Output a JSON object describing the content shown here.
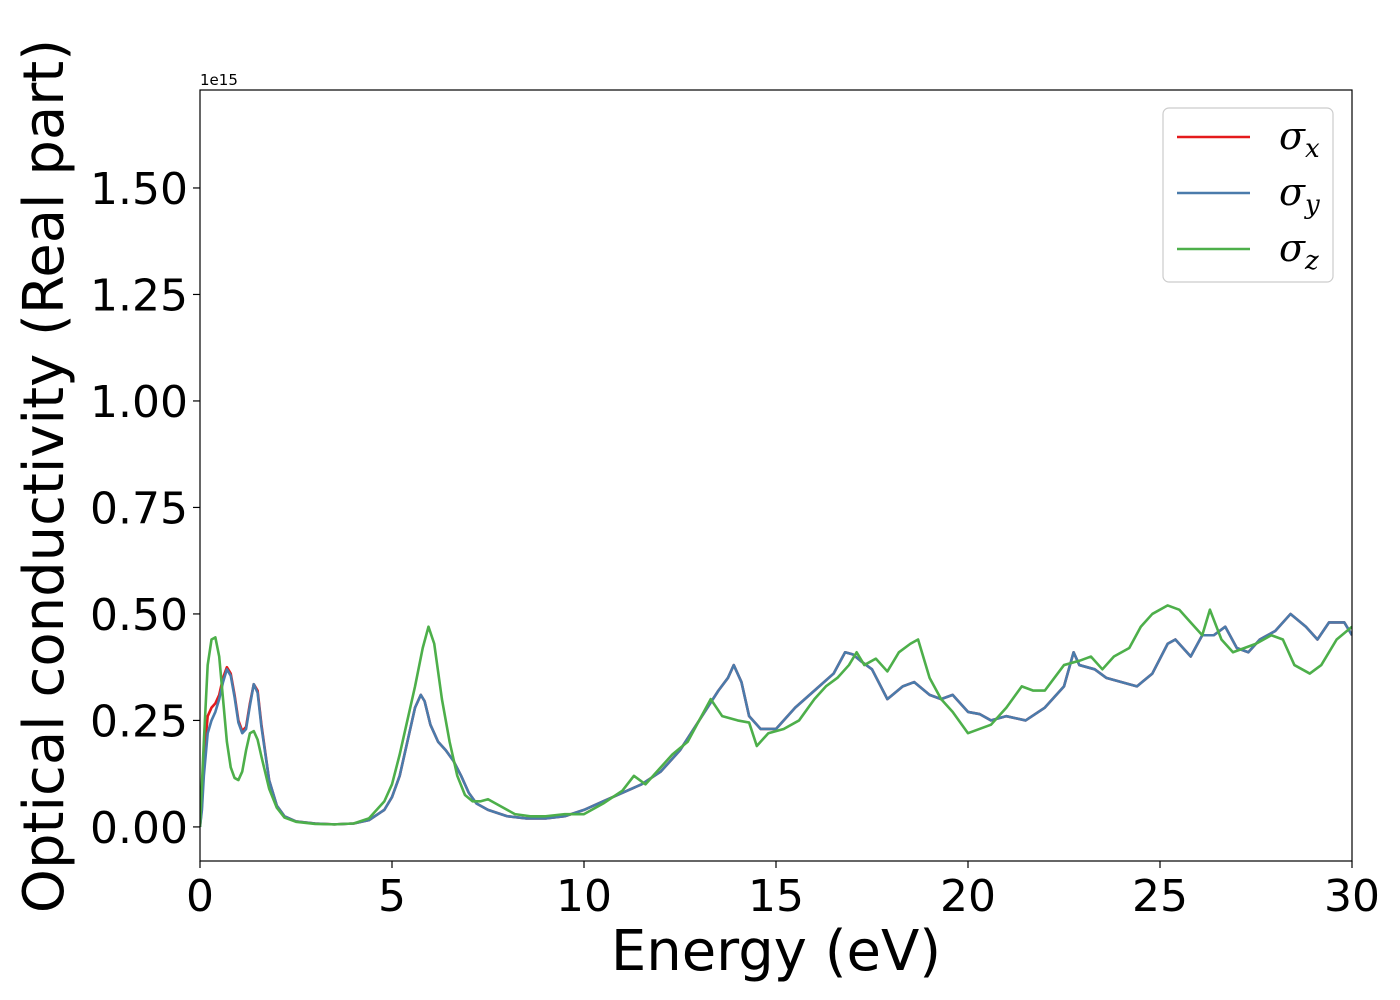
{
  "chart_data": {
    "type": "line",
    "xlabel": "Energy (eV)",
    "ylabel": "Optical conductivity (Real part)",
    "y_offset_text": "1e15",
    "xlim": [
      0,
      30
    ],
    "ylim": [
      -0.08,
      1.73
    ],
    "xticks": [
      0,
      5,
      10,
      15,
      20,
      25,
      30
    ],
    "xtick_labels": [
      "0",
      "5",
      "10",
      "15",
      "20",
      "25",
      "30"
    ],
    "yticks": [
      0.0,
      0.25,
      0.5,
      0.75,
      1.0,
      1.25,
      1.5
    ],
    "ytick_labels": [
      "0.00",
      "0.25",
      "0.50",
      "0.75",
      "1.00",
      "1.25",
      "1.50"
    ],
    "grid": false,
    "legend_position": "top-right",
    "series": [
      {
        "name": "σx",
        "legend_main": "σ",
        "legend_sub": "x",
        "color": "#e41a1c",
        "points": [
          [
            0,
            0.0
          ],
          [
            0.05,
            0.05
          ],
          [
            0.1,
            0.16
          ],
          [
            0.2,
            0.26
          ],
          [
            0.3,
            0.28
          ],
          [
            0.4,
            0.29
          ],
          [
            0.5,
            0.31
          ],
          [
            0.6,
            0.35
          ],
          [
            0.7,
            0.375
          ],
          [
            0.8,
            0.36
          ],
          [
            0.9,
            0.31
          ],
          [
            1.0,
            0.25
          ],
          [
            1.1,
            0.225
          ],
          [
            1.2,
            0.235
          ],
          [
            1.3,
            0.29
          ],
          [
            1.4,
            0.335
          ],
          [
            1.5,
            0.32
          ],
          [
            1.6,
            0.24
          ],
          [
            1.8,
            0.11
          ],
          [
            2.0,
            0.05
          ],
          [
            2.2,
            0.025
          ],
          [
            2.5,
            0.013
          ],
          [
            3.0,
            0.008
          ],
          [
            3.5,
            0.006
          ],
          [
            4.0,
            0.008
          ],
          [
            4.4,
            0.016
          ],
          [
            4.8,
            0.04
          ],
          [
            5.0,
            0.07
          ],
          [
            5.2,
            0.12
          ],
          [
            5.4,
            0.2
          ],
          [
            5.6,
            0.28
          ],
          [
            5.75,
            0.31
          ],
          [
            5.85,
            0.295
          ],
          [
            6.0,
            0.24
          ],
          [
            6.2,
            0.2
          ],
          [
            6.4,
            0.18
          ],
          [
            6.6,
            0.155
          ],
          [
            6.8,
            0.12
          ],
          [
            7.0,
            0.08
          ],
          [
            7.2,
            0.055
          ],
          [
            7.5,
            0.04
          ],
          [
            8.0,
            0.025
          ],
          [
            8.5,
            0.02
          ],
          [
            9.0,
            0.02
          ],
          [
            9.5,
            0.025
          ],
          [
            10.0,
            0.04
          ],
          [
            10.5,
            0.06
          ],
          [
            11.0,
            0.08
          ],
          [
            11.5,
            0.1
          ],
          [
            12.0,
            0.13
          ],
          [
            12.5,
            0.18
          ],
          [
            13.0,
            0.25
          ],
          [
            13.5,
            0.32
          ],
          [
            13.75,
            0.35
          ],
          [
            13.9,
            0.38
          ],
          [
            14.1,
            0.34
          ],
          [
            14.3,
            0.26
          ],
          [
            14.6,
            0.23
          ],
          [
            15.0,
            0.23
          ],
          [
            15.5,
            0.28
          ],
          [
            16.0,
            0.32
          ],
          [
            16.5,
            0.36
          ],
          [
            16.8,
            0.41
          ],
          [
            17.0,
            0.405
          ],
          [
            17.2,
            0.39
          ],
          [
            17.5,
            0.37
          ],
          [
            17.9,
            0.3
          ],
          [
            18.3,
            0.33
          ],
          [
            18.6,
            0.34
          ],
          [
            19.0,
            0.31
          ],
          [
            19.3,
            0.3
          ],
          [
            19.6,
            0.31
          ],
          [
            20.0,
            0.27
          ],
          [
            20.3,
            0.265
          ],
          [
            20.6,
            0.25
          ],
          [
            21.0,
            0.26
          ],
          [
            21.5,
            0.25
          ],
          [
            22.0,
            0.28
          ],
          [
            22.5,
            0.33
          ],
          [
            22.75,
            0.41
          ],
          [
            22.9,
            0.38
          ],
          [
            23.3,
            0.37
          ],
          [
            23.6,
            0.35
          ],
          [
            24.0,
            0.34
          ],
          [
            24.4,
            0.33
          ],
          [
            24.8,
            0.36
          ],
          [
            25.2,
            0.43
          ],
          [
            25.4,
            0.44
          ],
          [
            25.8,
            0.4
          ],
          [
            26.1,
            0.45
          ],
          [
            26.4,
            0.45
          ],
          [
            26.7,
            0.47
          ],
          [
            27.0,
            0.42
          ],
          [
            27.3,
            0.41
          ],
          [
            27.6,
            0.44
          ],
          [
            28.0,
            0.46
          ],
          [
            28.4,
            0.5
          ],
          [
            28.8,
            0.47
          ],
          [
            29.1,
            0.44
          ],
          [
            29.4,
            0.48
          ],
          [
            29.8,
            0.48
          ],
          [
            30.0,
            0.45
          ]
        ]
      },
      {
        "name": "σy",
        "legend_main": "σ",
        "legend_sub": "y",
        "color": "#4a7bab",
        "points": [
          [
            0,
            0.0
          ],
          [
            0.05,
            0.04
          ],
          [
            0.1,
            0.12
          ],
          [
            0.2,
            0.22
          ],
          [
            0.3,
            0.25
          ],
          [
            0.4,
            0.27
          ],
          [
            0.5,
            0.3
          ],
          [
            0.6,
            0.34
          ],
          [
            0.7,
            0.37
          ],
          [
            0.8,
            0.355
          ],
          [
            0.9,
            0.305
          ],
          [
            1.0,
            0.245
          ],
          [
            1.1,
            0.22
          ],
          [
            1.2,
            0.23
          ],
          [
            1.3,
            0.285
          ],
          [
            1.4,
            0.335
          ],
          [
            1.5,
            0.315
          ],
          [
            1.6,
            0.235
          ],
          [
            1.8,
            0.11
          ],
          [
            2.0,
            0.05
          ],
          [
            2.2,
            0.025
          ],
          [
            2.5,
            0.013
          ],
          [
            3.0,
            0.008
          ],
          [
            3.5,
            0.006
          ],
          [
            4.0,
            0.008
          ],
          [
            4.4,
            0.016
          ],
          [
            4.8,
            0.04
          ],
          [
            5.0,
            0.07
          ],
          [
            5.2,
            0.12
          ],
          [
            5.4,
            0.2
          ],
          [
            5.6,
            0.28
          ],
          [
            5.75,
            0.31
          ],
          [
            5.85,
            0.295
          ],
          [
            6.0,
            0.24
          ],
          [
            6.2,
            0.2
          ],
          [
            6.4,
            0.18
          ],
          [
            6.6,
            0.155
          ],
          [
            6.8,
            0.12
          ],
          [
            7.0,
            0.08
          ],
          [
            7.2,
            0.055
          ],
          [
            7.5,
            0.04
          ],
          [
            8.0,
            0.025
          ],
          [
            8.5,
            0.02
          ],
          [
            9.0,
            0.02
          ],
          [
            9.5,
            0.025
          ],
          [
            10.0,
            0.04
          ],
          [
            10.5,
            0.06
          ],
          [
            11.0,
            0.08
          ],
          [
            11.5,
            0.1
          ],
          [
            12.0,
            0.13
          ],
          [
            12.5,
            0.18
          ],
          [
            13.0,
            0.25
          ],
          [
            13.5,
            0.32
          ],
          [
            13.75,
            0.35
          ],
          [
            13.9,
            0.38
          ],
          [
            14.1,
            0.34
          ],
          [
            14.3,
            0.26
          ],
          [
            14.6,
            0.23
          ],
          [
            15.0,
            0.23
          ],
          [
            15.5,
            0.28
          ],
          [
            16.0,
            0.32
          ],
          [
            16.5,
            0.36
          ],
          [
            16.8,
            0.41
          ],
          [
            17.0,
            0.405
          ],
          [
            17.2,
            0.39
          ],
          [
            17.5,
            0.37
          ],
          [
            17.9,
            0.3
          ],
          [
            18.3,
            0.33
          ],
          [
            18.6,
            0.34
          ],
          [
            19.0,
            0.31
          ],
          [
            19.3,
            0.3
          ],
          [
            19.6,
            0.31
          ],
          [
            20.0,
            0.27
          ],
          [
            20.3,
            0.265
          ],
          [
            20.6,
            0.25
          ],
          [
            21.0,
            0.26
          ],
          [
            21.5,
            0.25
          ],
          [
            22.0,
            0.28
          ],
          [
            22.5,
            0.33
          ],
          [
            22.75,
            0.41
          ],
          [
            22.9,
            0.38
          ],
          [
            23.3,
            0.37
          ],
          [
            23.6,
            0.35
          ],
          [
            24.0,
            0.34
          ],
          [
            24.4,
            0.33
          ],
          [
            24.8,
            0.36
          ],
          [
            25.2,
            0.43
          ],
          [
            25.4,
            0.44
          ],
          [
            25.8,
            0.4
          ],
          [
            26.1,
            0.45
          ],
          [
            26.4,
            0.45
          ],
          [
            26.7,
            0.47
          ],
          [
            27.0,
            0.42
          ],
          [
            27.3,
            0.41
          ],
          [
            27.6,
            0.44
          ],
          [
            28.0,
            0.46
          ],
          [
            28.4,
            0.5
          ],
          [
            28.8,
            0.47
          ],
          [
            29.1,
            0.44
          ],
          [
            29.4,
            0.48
          ],
          [
            29.8,
            0.48
          ],
          [
            30.0,
            0.45
          ]
        ]
      },
      {
        "name": "σz",
        "legend_main": "σ",
        "legend_sub": "z",
        "color": "#4daf4a",
        "points": [
          [
            0,
            0.0
          ],
          [
            0.1,
            0.2
          ],
          [
            0.2,
            0.38
          ],
          [
            0.3,
            0.44
          ],
          [
            0.4,
            0.445
          ],
          [
            0.5,
            0.4
          ],
          [
            0.6,
            0.3
          ],
          [
            0.7,
            0.2
          ],
          [
            0.8,
            0.14
          ],
          [
            0.9,
            0.115
          ],
          [
            1.0,
            0.11
          ],
          [
            1.1,
            0.13
          ],
          [
            1.2,
            0.18
          ],
          [
            1.3,
            0.22
          ],
          [
            1.4,
            0.225
          ],
          [
            1.5,
            0.205
          ],
          [
            1.6,
            0.165
          ],
          [
            1.8,
            0.09
          ],
          [
            2.0,
            0.045
          ],
          [
            2.2,
            0.022
          ],
          [
            2.5,
            0.012
          ],
          [
            3.0,
            0.007
          ],
          [
            3.5,
            0.006
          ],
          [
            4.0,
            0.008
          ],
          [
            4.4,
            0.02
          ],
          [
            4.8,
            0.06
          ],
          [
            5.0,
            0.1
          ],
          [
            5.2,
            0.17
          ],
          [
            5.4,
            0.25
          ],
          [
            5.6,
            0.33
          ],
          [
            5.8,
            0.42
          ],
          [
            5.95,
            0.47
          ],
          [
            6.1,
            0.43
          ],
          [
            6.3,
            0.3
          ],
          [
            6.5,
            0.2
          ],
          [
            6.7,
            0.12
          ],
          [
            6.9,
            0.075
          ],
          [
            7.1,
            0.06
          ],
          [
            7.3,
            0.06
          ],
          [
            7.5,
            0.065
          ],
          [
            7.8,
            0.05
          ],
          [
            8.2,
            0.03
          ],
          [
            8.6,
            0.025
          ],
          [
            9.0,
            0.025
          ],
          [
            9.5,
            0.03
          ],
          [
            10.0,
            0.03
          ],
          [
            10.5,
            0.055
          ],
          [
            11.0,
            0.085
          ],
          [
            11.3,
            0.12
          ],
          [
            11.6,
            0.1
          ],
          [
            12.0,
            0.14
          ],
          [
            12.3,
            0.17
          ],
          [
            12.7,
            0.2
          ],
          [
            13.0,
            0.25
          ],
          [
            13.3,
            0.3
          ],
          [
            13.6,
            0.26
          ],
          [
            14.0,
            0.25
          ],
          [
            14.3,
            0.245
          ],
          [
            14.5,
            0.19
          ],
          [
            14.8,
            0.22
          ],
          [
            15.2,
            0.23
          ],
          [
            15.6,
            0.25
          ],
          [
            16.0,
            0.3
          ],
          [
            16.3,
            0.33
          ],
          [
            16.6,
            0.35
          ],
          [
            16.9,
            0.38
          ],
          [
            17.1,
            0.41
          ],
          [
            17.3,
            0.38
          ],
          [
            17.6,
            0.395
          ],
          [
            17.9,
            0.365
          ],
          [
            18.2,
            0.41
          ],
          [
            18.5,
            0.43
          ],
          [
            18.7,
            0.44
          ],
          [
            19.0,
            0.35
          ],
          [
            19.3,
            0.3
          ],
          [
            19.6,
            0.27
          ],
          [
            20.0,
            0.22
          ],
          [
            20.3,
            0.23
          ],
          [
            20.6,
            0.24
          ],
          [
            21.0,
            0.28
          ],
          [
            21.4,
            0.33
          ],
          [
            21.7,
            0.32
          ],
          [
            22.0,
            0.32
          ],
          [
            22.5,
            0.38
          ],
          [
            22.9,
            0.39
          ],
          [
            23.2,
            0.4
          ],
          [
            23.5,
            0.37
          ],
          [
            23.8,
            0.4
          ],
          [
            24.2,
            0.42
          ],
          [
            24.5,
            0.47
          ],
          [
            24.8,
            0.5
          ],
          [
            25.2,
            0.52
          ],
          [
            25.5,
            0.51
          ],
          [
            25.8,
            0.48
          ],
          [
            26.1,
            0.45
          ],
          [
            26.3,
            0.51
          ],
          [
            26.6,
            0.44
          ],
          [
            26.9,
            0.41
          ],
          [
            27.2,
            0.42
          ],
          [
            27.5,
            0.43
          ],
          [
            27.9,
            0.45
          ],
          [
            28.2,
            0.44
          ],
          [
            28.5,
            0.38
          ],
          [
            28.9,
            0.36
          ],
          [
            29.2,
            0.38
          ],
          [
            29.6,
            0.44
          ],
          [
            30.0,
            0.47
          ]
        ]
      }
    ]
  }
}
